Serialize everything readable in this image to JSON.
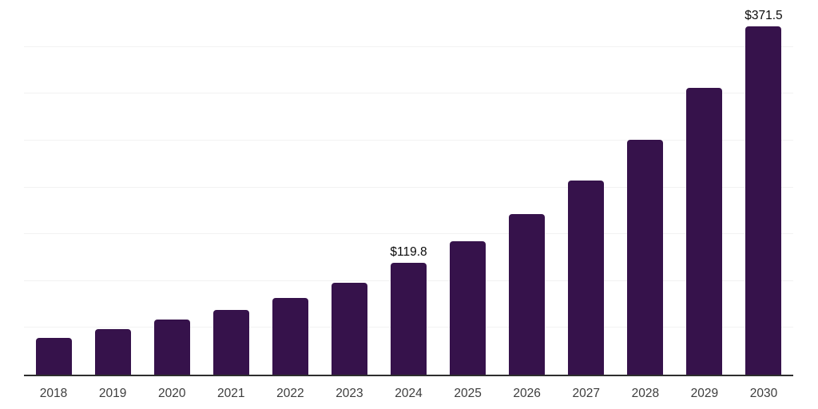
{
  "chart_data": {
    "type": "bar",
    "title": "",
    "xlabel": "",
    "ylabel": "",
    "categories": [
      "2018",
      "2019",
      "2020",
      "2021",
      "2022",
      "2023",
      "2024",
      "2025",
      "2026",
      "2027",
      "2028",
      "2029",
      "2030"
    ],
    "values": [
      39.3,
      49.0,
      58.6,
      68.9,
      81.7,
      98.2,
      119.8,
      142.2,
      171.6,
      207.4,
      250.9,
      306.4,
      371.5
    ],
    "bar_labels": [
      "",
      "",
      "",
      "",
      "",
      "",
      "$119.8",
      "",
      "",
      "",
      "",
      "",
      "$371.5"
    ],
    "ylim": [
      0,
      400
    ],
    "grid_interval": 50,
    "grid": "horizontal-only",
    "y_axis_tick_labels_visible": false,
    "legend": "none"
  },
  "colors": {
    "bar": "#36124B",
    "gridline": "#F2F2F2",
    "axis_line": "#2E2E2E",
    "tick_label": "#3D3D3D",
    "data_label": "#0A0A0A",
    "background": "#FFFFFF"
  }
}
